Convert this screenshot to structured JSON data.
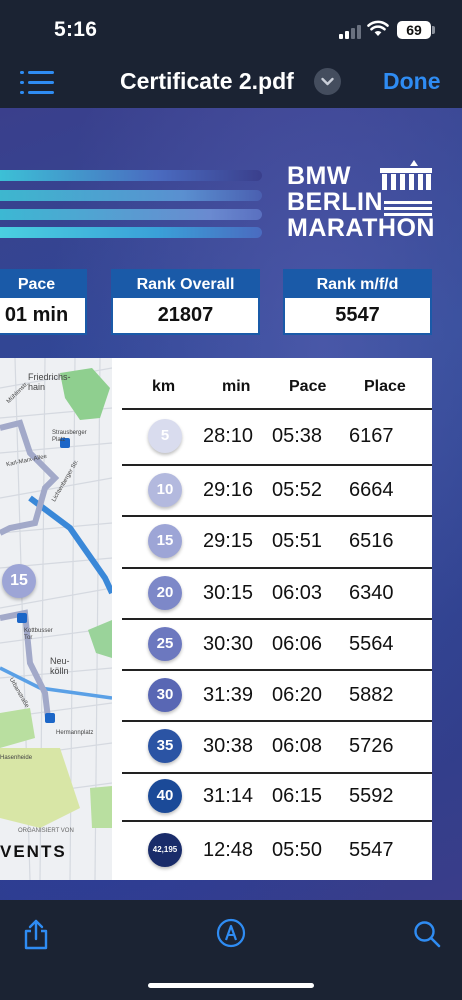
{
  "status_bar": {
    "time": "5:16",
    "battery": "69"
  },
  "nav": {
    "title": "Certificate 2.pdf",
    "done_label": "Done"
  },
  "certificate": {
    "logo": {
      "line1": "BMW",
      "line2": "BERLIN",
      "line3": "MARATHON"
    },
    "stats": [
      {
        "label": "Pace",
        "value": "01 min"
      },
      {
        "label": "Rank Overall",
        "value": "21807"
      },
      {
        "label": "Rank m/f/d",
        "value": "5547"
      }
    ],
    "map": {
      "labels": [
        "Friedrichs-hain",
        "Strausberger Platz",
        "Karl-Marx-Allee",
        "Lichtenberger Str.",
        "Kottbusser Tor",
        "Neu-kölln",
        "Hermannplatz",
        "Urbanstraße",
        "Hasenheide",
        "Mühlenstr."
      ],
      "marker": "15",
      "org_label": "ORGANISIERT VON",
      "events_label": "VENTS"
    },
    "splits": {
      "headers": [
        "km",
        "min",
        "Pace",
        "Place"
      ],
      "rows": [
        {
          "km": "5",
          "min": "28:10",
          "pace": "05:38",
          "place": "6167",
          "color": "#d9dcee"
        },
        {
          "km": "10",
          "min": "29:16",
          "pace": "05:52",
          "place": "6664",
          "color": "#b3b9de"
        },
        {
          "km": "15",
          "min": "29:15",
          "pace": "05:51",
          "place": "6516",
          "color": "#9da5d6"
        },
        {
          "km": "20",
          "min": "30:15",
          "pace": "06:03",
          "place": "6340",
          "color": "#7d88c8"
        },
        {
          "km": "25",
          "min": "30:30",
          "pace": "06:06",
          "place": "5564",
          "color": "#6c78bf"
        },
        {
          "km": "30",
          "min": "31:39",
          "pace": "06:20",
          "place": "5882",
          "color": "#5967b4"
        },
        {
          "km": "35",
          "min": "30:38",
          "pace": "06:08",
          "place": "5726",
          "color": "#2b54a4"
        },
        {
          "km": "40",
          "min": "31:14",
          "pace": "06:15",
          "place": "5592",
          "color": "#1b4a98"
        },
        {
          "km": "42,195",
          "min": "12:48",
          "pace": "05:50",
          "place": "5547",
          "color": "#1a2c6a"
        }
      ]
    }
  },
  "toolbar": {
    "share": "share-icon",
    "markup": "markup-icon",
    "search": "search-icon"
  },
  "colors": {
    "accent": "#2f8cf3",
    "chrome": "#1b2333",
    "rank_header": "#1a5aa8"
  }
}
